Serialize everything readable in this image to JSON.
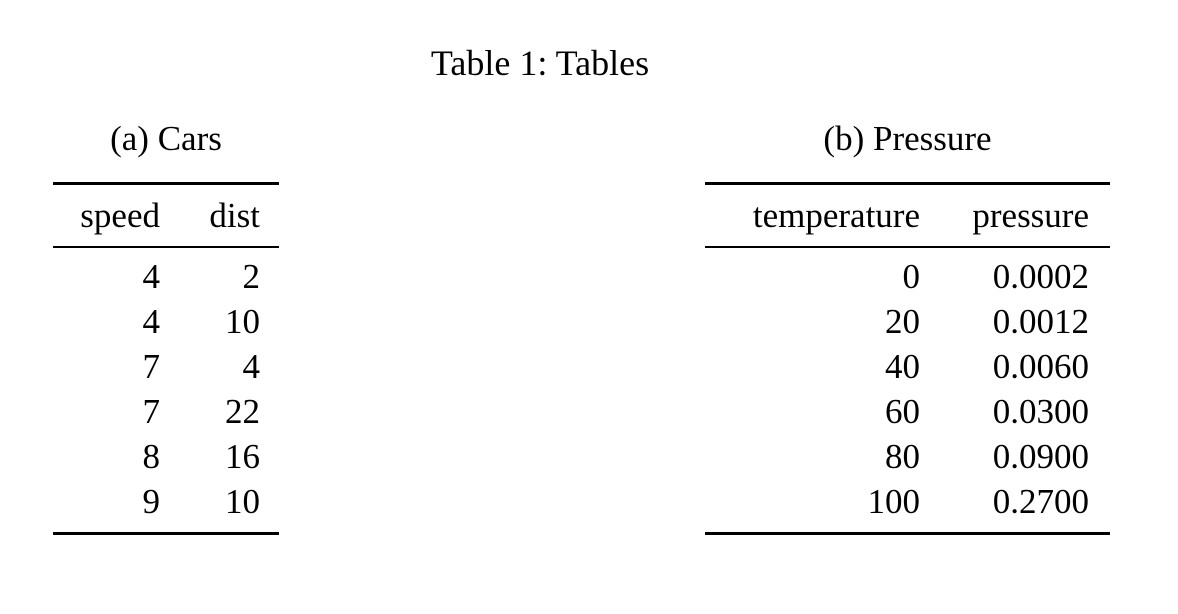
{
  "page": {
    "background_color": "#ffffff",
    "text_color": "#000000",
    "title": "Table 1: Tables"
  },
  "subtables": [
    {
      "caption": "(a) Cars",
      "columns": [
        "speed",
        "dist"
      ],
      "rows": [
        [
          "4",
          "2"
        ],
        [
          "4",
          "10"
        ],
        [
          "7",
          "4"
        ],
        [
          "7",
          "22"
        ],
        [
          "8",
          "16"
        ],
        [
          "9",
          "10"
        ]
      ]
    },
    {
      "caption": "(b) Pressure",
      "columns": [
        "temperature",
        "pressure"
      ],
      "rows": [
        [
          "0",
          "0.0002"
        ],
        [
          "20",
          "0.0012"
        ],
        [
          "40",
          "0.0060"
        ],
        [
          "60",
          "0.0300"
        ],
        [
          "80",
          "0.0900"
        ],
        [
          "100",
          "0.2700"
        ]
      ]
    }
  ]
}
